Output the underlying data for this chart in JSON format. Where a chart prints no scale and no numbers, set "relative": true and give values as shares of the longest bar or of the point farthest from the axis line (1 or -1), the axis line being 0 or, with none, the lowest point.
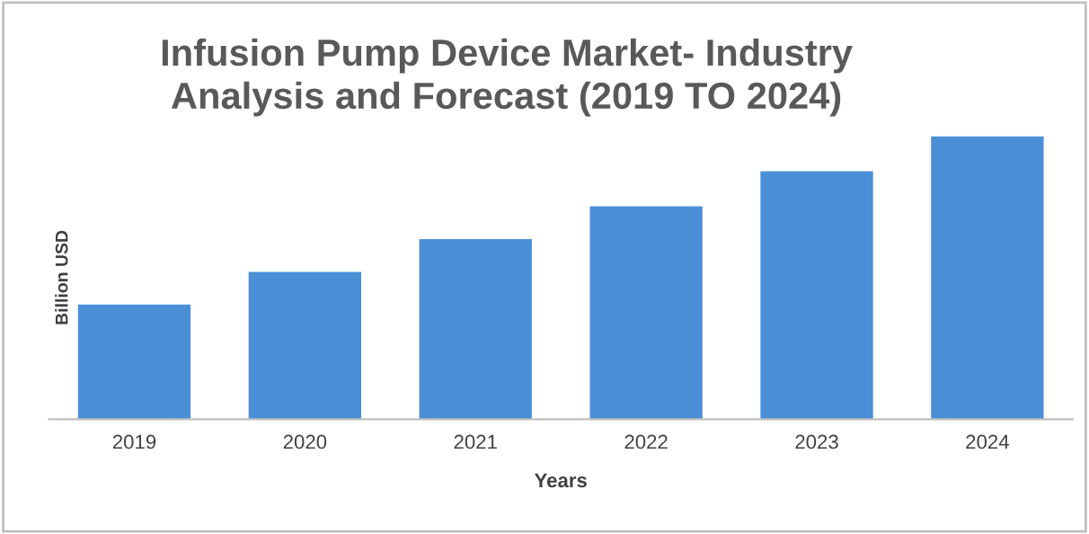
{
  "chart_data": {
    "type": "bar",
    "title": "Infusion Pump Device Market- Industry\nAnalysis and Forecast (2019 TO 2024)",
    "xlabel": "Years",
    "ylabel": "Billion USD",
    "relative": true,
    "categories": [
      "2019",
      "2020",
      "2021",
      "2022",
      "2023",
      "2024"
    ],
    "values": [
      0.405,
      0.52,
      0.636,
      0.752,
      0.876,
      1
    ],
    "color": "#4a8fd6",
    "grid": false,
    "legend": false
  }
}
